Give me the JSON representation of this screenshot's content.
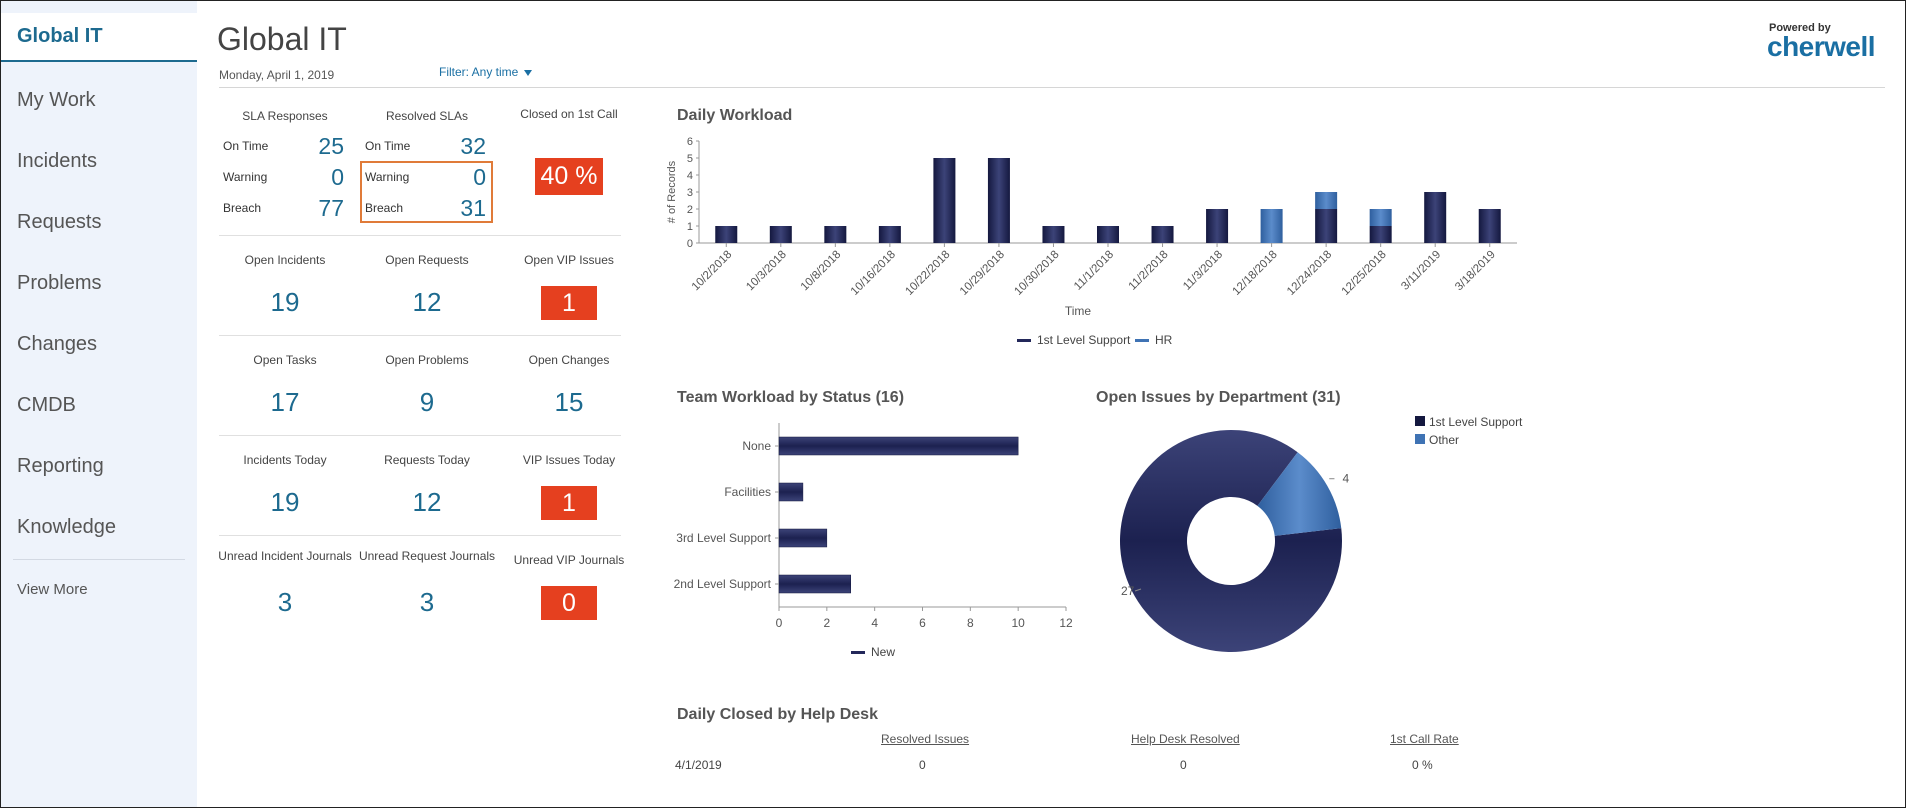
{
  "sidebar": {
    "active": "Global IT",
    "items": [
      "My Work",
      "Incidents",
      "Requests",
      "Problems",
      "Changes",
      "CMDB",
      "Reporting",
      "Knowledge"
    ],
    "view_more": "View More"
  },
  "header": {
    "title": "Global IT",
    "date": "Monday, April 1, 2019",
    "filter": "Filter: Any time",
    "logo_top": "Powered by",
    "logo": "cherwell"
  },
  "sla": {
    "responses_label": "SLA Responses",
    "resolved_label": "Resolved SLAs",
    "closed_label": "Closed on 1st Call",
    "rows": [
      {
        "label": "On Time",
        "responses": "25",
        "resolved": "32"
      },
      {
        "label": "Warning",
        "responses": "0",
        "resolved": "0"
      },
      {
        "label": "Breach",
        "responses": "77",
        "resolved": "31"
      }
    ],
    "closed_value": "40 %"
  },
  "metrics": [
    [
      {
        "label": "Open Incidents",
        "value": "19"
      },
      {
        "label": "Open Requests",
        "value": "12"
      },
      {
        "label": "Open VIP Issues",
        "value": "1",
        "alert": true
      }
    ],
    [
      {
        "label": "Open Tasks",
        "value": "17"
      },
      {
        "label": "Open Problems",
        "value": "9"
      },
      {
        "label": "Open Changes",
        "value": "15"
      }
    ],
    [
      {
        "label": "Incidents Today",
        "value": "19"
      },
      {
        "label": "Requests Today",
        "value": "12"
      },
      {
        "label": "VIP Issues Today",
        "value": "1",
        "alert": true
      }
    ],
    [
      {
        "label": "Unread Incident Journals",
        "value": "3"
      },
      {
        "label": "Unread Request Journals",
        "value": "3"
      },
      {
        "label": "Unread VIP Journals",
        "value": "0",
        "alert": true
      }
    ]
  ],
  "colors": {
    "dark": "#23285a",
    "light": "#3f73b4",
    "accent": "#1d6a8f",
    "alert": "#e5401f"
  },
  "chart_data": [
    {
      "type": "bar",
      "title": "Daily Workload",
      "xlabel": "Time",
      "ylabel": "# of Records",
      "ylim": [
        0,
        6
      ],
      "categories": [
        "10/2/2018",
        "10/3/2018",
        "10/8/2018",
        "10/16/2018",
        "10/22/2018",
        "10/29/2018",
        "10/30/2018",
        "11/1/2018",
        "11/2/2018",
        "11/3/2018",
        "12/18/2018",
        "12/24/2018",
        "12/25/2018",
        "3/11/2019",
        "3/18/2019"
      ],
      "series": [
        {
          "name": "1st Level Support",
          "values": [
            1,
            1,
            1,
            1,
            5,
            5,
            1,
            1,
            1,
            2,
            0,
            2,
            1,
            3,
            2
          ]
        },
        {
          "name": "HR",
          "values": [
            0,
            0,
            0,
            0,
            0,
            0,
            0,
            0,
            0,
            0,
            2,
            1,
            1,
            0,
            0
          ]
        }
      ]
    },
    {
      "type": "bar",
      "orientation": "horizontal",
      "title": "Team Workload by Status (16)",
      "categories": [
        "None",
        "Facilities",
        "3rd Level Support",
        "2nd Level Support"
      ],
      "series": [
        {
          "name": "New",
          "values": [
            10,
            1,
            2,
            3
          ]
        }
      ],
      "xlim": [
        0,
        12
      ],
      "xticks": [
        0,
        2,
        4,
        6,
        8,
        10,
        12
      ]
    },
    {
      "type": "pie",
      "title": "Open Issues by Department (31)",
      "labels": [
        "1st Level Support",
        "Other"
      ],
      "values": [
        27,
        4
      ]
    }
  ],
  "table": {
    "title": "Daily Closed by Help Desk",
    "headers": [
      "Resolved Issues",
      "Help Desk Resolved",
      "1st Call Rate"
    ],
    "row": {
      "date": "4/1/2019",
      "values": [
        "0",
        "0",
        "0 %"
      ]
    }
  }
}
